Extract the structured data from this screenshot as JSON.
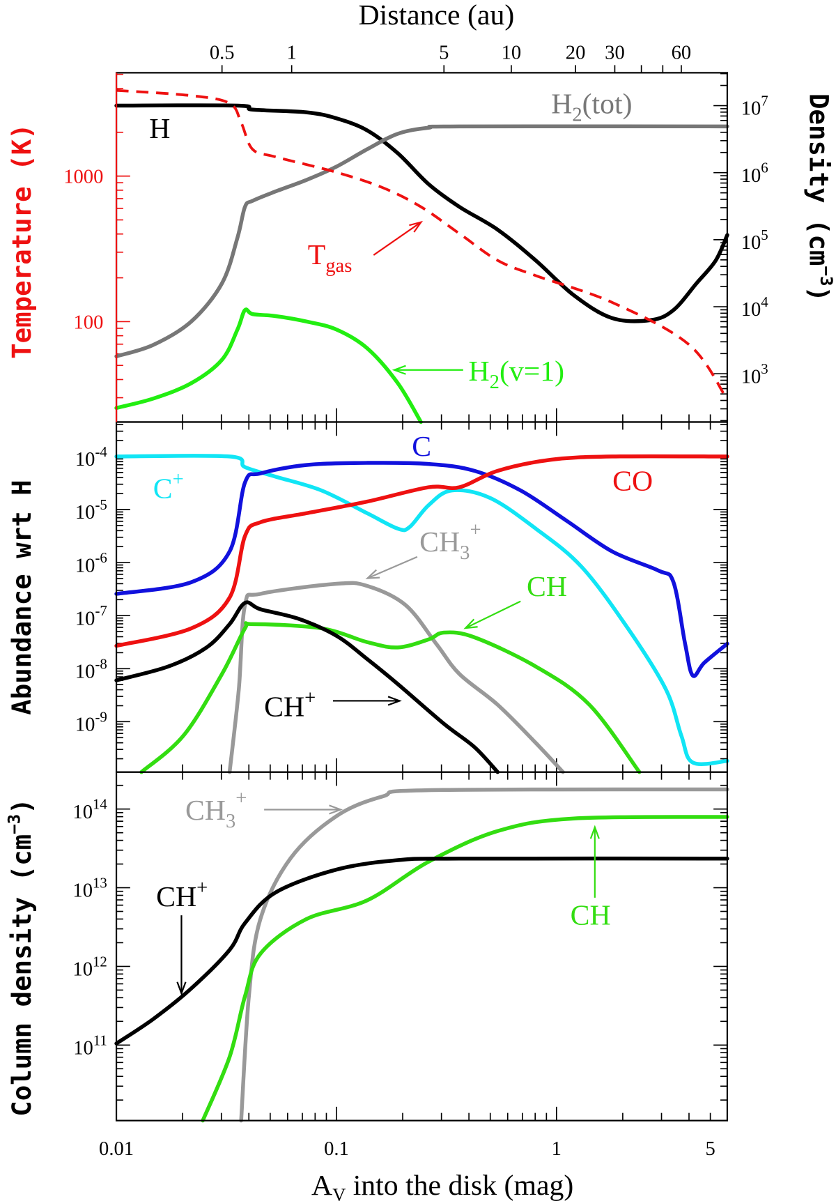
{
  "chart_data": [
    {
      "type": "line",
      "panel": "top",
      "top_axis": {
        "title": "Distance (au)",
        "ticks": [
          {
            "label": "0.5",
            "av": 0.0302
          },
          {
            "label": "1",
            "av": 0.0626
          },
          {
            "label": "5",
            "av": 0.308
          },
          {
            "label": "10",
            "av": 0.623
          },
          {
            "label": "20",
            "av": 1.22
          },
          {
            "label": "30",
            "av": 1.84
          },
          {
            "label": "",
            "av": 2.43
          },
          {
            "label": "",
            "av": 3.04
          },
          {
            "label": "60",
            "av": 3.69
          }
        ]
      },
      "xlim": [
        0.01,
        5.97
      ],
      "xscale": "log",
      "ylabel_left": "Temperature (K)",
      "ylim_left_log10": [
        1.31,
        3.71
      ],
      "yticks_left": [
        "100",
        "1000"
      ],
      "ylabel_right": "Density (cm−3)",
      "ylim_right_log10": [
        2.28,
        7.49
      ],
      "yticks_right_exponents": [
        "3",
        "4",
        "5",
        "6",
        "7"
      ],
      "series": [
        {
          "name": "H",
          "axis": "right",
          "color": "#000000",
          "dash": false,
          "x": [
            0.01,
            0.0355,
            0.0416,
            0.0729,
            0.1,
            0.138,
            0.19,
            0.262,
            0.362,
            0.54,
            0.805,
            1.2,
            1.79,
            2.68,
            3.4,
            4.33,
            5.29,
            5.97
          ],
          "log10_y": [
            7,
            7,
            6.94,
            6.9,
            6.81,
            6.63,
            6.29,
            5.83,
            5.49,
            5.15,
            4.69,
            4.17,
            3.83,
            3.8,
            3.95,
            4.35,
            4.69,
            5.07
          ]
        },
        {
          "name": "H2(tot)",
          "axis": "right",
          "color": "#777777",
          "dash": false,
          "x": [
            0.01,
            0.0147,
            0.0219,
            0.0302,
            0.0355,
            0.0384,
            0.0416,
            0.0529,
            0.0729,
            0.1,
            0.138,
            0.19,
            0.262,
            0.362,
            5.97
          ],
          "log10_y": [
            3.26,
            3.43,
            3.78,
            4.35,
            5.03,
            5.49,
            5.58,
            5.72,
            5.89,
            6.09,
            6.35,
            6.58,
            6.67,
            6.69,
            6.69
          ]
        },
        {
          "name": "H2(v=1)",
          "axis": "right",
          "color": "#22ee11",
          "dash": false,
          "x": [
            0.01,
            0.0147,
            0.0219,
            0.0302,
            0.0355,
            0.0384,
            0.0416,
            0.0529,
            0.0729,
            0.1,
            0.138,
            0.19,
            0.242
          ],
          "log10_y": [
            2.49,
            2.63,
            2.86,
            3.21,
            3.66,
            3.95,
            3.89,
            3.86,
            3.78,
            3.66,
            3.38,
            2.86,
            2.28
          ]
        },
        {
          "name": "Tgas",
          "axis": "left",
          "color": "#ee1111",
          "dash": true,
          "x": [
            0.01,
            0.0219,
            0.0327,
            0.0369,
            0.0416,
            0.0529,
            0.1,
            0.162,
            0.242,
            0.362,
            0.54,
            0.805,
            1.79,
            4.0,
            5.97
          ],
          "log10_y": [
            3.589,
            3.553,
            3.5,
            3.368,
            3.184,
            3.132,
            3.026,
            2.921,
            2.789,
            2.605,
            2.421,
            2.316,
            2.132,
            1.842,
            1.463
          ]
        }
      ],
      "annotations": {
        "H": "H",
        "H2tot_main": "H",
        "H2tot_sub": "2",
        "H2tot_rest": "(tot)",
        "Tgas_main": "T",
        "Tgas_sub": "gas",
        "H2v1_main": "H",
        "H2v1_sub": "2",
        "H2v1_rest": "(v=1)"
      }
    },
    {
      "type": "line",
      "panel": "middle",
      "xlim": [
        0.01,
        5.97
      ],
      "xscale": "log",
      "ylabel": "Abundance wrt H",
      "ylim_log10": [
        -9.95,
        -3.35
      ],
      "yticks_exponents": [
        "-4",
        "-5",
        "-6",
        "-7",
        "-8",
        "-9"
      ],
      "series": [
        {
          "name": "C+",
          "color": "#11e5f5",
          "x": [
            0.01,
            0.0327,
            0.0384,
            0.0529,
            0.0855,
            0.138,
            0.19,
            0.215,
            0.262,
            0.334,
            0.498,
            0.805,
            1.3,
            2.11,
            3.14,
            3.69,
            4.16,
            5.97
          ],
          "log10_y": [
            -4,
            -4,
            -4.2,
            -4.38,
            -4.64,
            -5.07,
            -5.36,
            -5.33,
            -4.92,
            -4.64,
            -4.78,
            -5.36,
            -6.08,
            -7.24,
            -8.39,
            -9.26,
            -9.77,
            -9.74
          ]
        },
        {
          "name": "C",
          "color": "#1111dd",
          "x": [
            0.01,
            0.0219,
            0.0327,
            0.0384,
            0.0451,
            0.0729,
            0.138,
            0.262,
            0.424,
            0.687,
            1.11,
            1.79,
            2.9,
            3.4,
            3.84,
            4.16,
            4.69,
            5.97
          ],
          "log10_y": [
            -6.59,
            -6.37,
            -5.79,
            -4.49,
            -4.32,
            -4.16,
            -4.12,
            -4.14,
            -4.27,
            -4.64,
            -5.21,
            -5.79,
            -6.15,
            -6.37,
            -7.53,
            -8.13,
            -7.89,
            -7.53
          ]
        },
        {
          "name": "CO",
          "color": "#ee1111",
          "x": [
            0.01,
            0.0219,
            0.0327,
            0.0384,
            0.0451,
            0.0729,
            0.138,
            0.262,
            0.362,
            0.54,
            0.946,
            1.79,
            5.97
          ],
          "log10_y": [
            -7.57,
            -7.24,
            -6.66,
            -5.5,
            -5.24,
            -5.07,
            -4.85,
            -4.58,
            -4.58,
            -4.27,
            -4.06,
            -4,
            -4
          ]
        },
        {
          "name": "CH3+",
          "color": "#999999",
          "x": [
            0.0327,
            0.036,
            0.0384,
            0.0451,
            0.1,
            0.138,
            0.206,
            0.284,
            0.362,
            0.54,
            0.805,
            1.07
          ],
          "log10_y": [
            -9.95,
            -8.39,
            -6.8,
            -6.59,
            -6.4,
            -6.44,
            -6.8,
            -7.53,
            -8.1,
            -8.68,
            -9.4,
            -9.95
          ]
        },
        {
          "name": "CH",
          "color": "#33dd11",
          "x": [
            0.013,
            0.0202,
            0.0302,
            0.0384,
            0.0416,
            0.0855,
            0.138,
            0.19,
            0.262,
            0.308,
            0.424,
            0.805,
            1.41,
            2.38
          ],
          "log10_y": [
            -9.95,
            -9.26,
            -8.1,
            -7.24,
            -7.16,
            -7.24,
            -7.5,
            -7.6,
            -7.45,
            -7.32,
            -7.41,
            -7.96,
            -8.68,
            -9.95
          ]
        },
        {
          "name": "CH+",
          "color": "#000000",
          "x": [
            0.01,
            0.0172,
            0.0257,
            0.0327,
            0.0384,
            0.0451,
            0.0673,
            0.1,
            0.138,
            0.19,
            0.308,
            0.424,
            0.54
          ],
          "log10_y": [
            -8.22,
            -7.96,
            -7.6,
            -7.16,
            -6.76,
            -6.88,
            -7.06,
            -7.38,
            -7.82,
            -8.29,
            -9.04,
            -9.48,
            -9.95
          ]
        }
      ],
      "annotations": {
        "C": "C",
        "Cplus_main": "C",
        "Cplus_sup": "+",
        "CO": "CO",
        "CH3_main": "CH",
        "CH3_sub": "3",
        "CH3_sup": "+",
        "CH": "CH",
        "CHplus_main": "CH",
        "CHplus_sup": "+"
      }
    },
    {
      "type": "line",
      "panel": "bottom",
      "xlim": [
        0.01,
        5.97
      ],
      "xscale": "log",
      "xlabel_main": "A",
      "xlabel_sub": "V",
      "xlabel_rest": " into the disk (mag)",
      "xticks": [
        {
          "label": "0.01",
          "av": 0.01
        },
        {
          "label": "0.1",
          "av": 0.1
        },
        {
          "label": "1",
          "av": 1
        },
        {
          "label": "5",
          "av": 5
        }
      ],
      "ylabel": "Column density (cm−3)",
      "ylim_log10": [
        10.04,
        14.47
      ],
      "yticks_exponents": [
        "11",
        "12",
        "13",
        "14"
      ],
      "series": [
        {
          "name": "CH3+",
          "color": "#999999",
          "x": [
            0.0369,
            0.04,
            0.0451,
            0.0621,
            0.1,
            0.162,
            0.262,
            5.97
          ],
          "log10_y": [
            10.04,
            11.62,
            12.6,
            13.38,
            13.91,
            14.16,
            14.24,
            14.25
          ]
        },
        {
          "name": "CH",
          "color": "#33dd11",
          "x": [
            0.0247,
            0.0327,
            0.0384,
            0.0451,
            0.0729,
            0.138,
            0.262,
            0.54,
            1.2,
            5.97
          ],
          "log10_y": [
            10.04,
            10.85,
            11.62,
            12.16,
            12.6,
            12.84,
            13.33,
            13.72,
            13.88,
            13.9
          ]
        },
        {
          "name": "CH+",
          "color": "#000000",
          "x": [
            0.01,
            0.0147,
            0.0219,
            0.0327,
            0.0384,
            0.0529,
            0.1,
            0.19,
            0.362,
            5.97
          ],
          "log10_y": [
            11.02,
            11.33,
            11.72,
            12.21,
            12.55,
            12.94,
            13.23,
            13.35,
            13.37,
            13.37
          ]
        }
      ],
      "annotations": {
        "CH3_main": "CH",
        "CH3_sub": "3",
        "CH3_sup": "+",
        "CHplus_main": "CH",
        "CHplus_sup": "+",
        "CH": "CH"
      }
    }
  ],
  "labels": {
    "distance": "Distance (au)",
    "temperature": "Temperature (K)",
    "density_main": "Density (cm",
    "density_sup": "−3",
    "density_close": ")",
    "abundance": "Abundance wrt H",
    "coldens_main": "Column density (cm",
    "coldens_sup": "−3",
    "coldens_close": ")",
    "exp_base": "10"
  }
}
